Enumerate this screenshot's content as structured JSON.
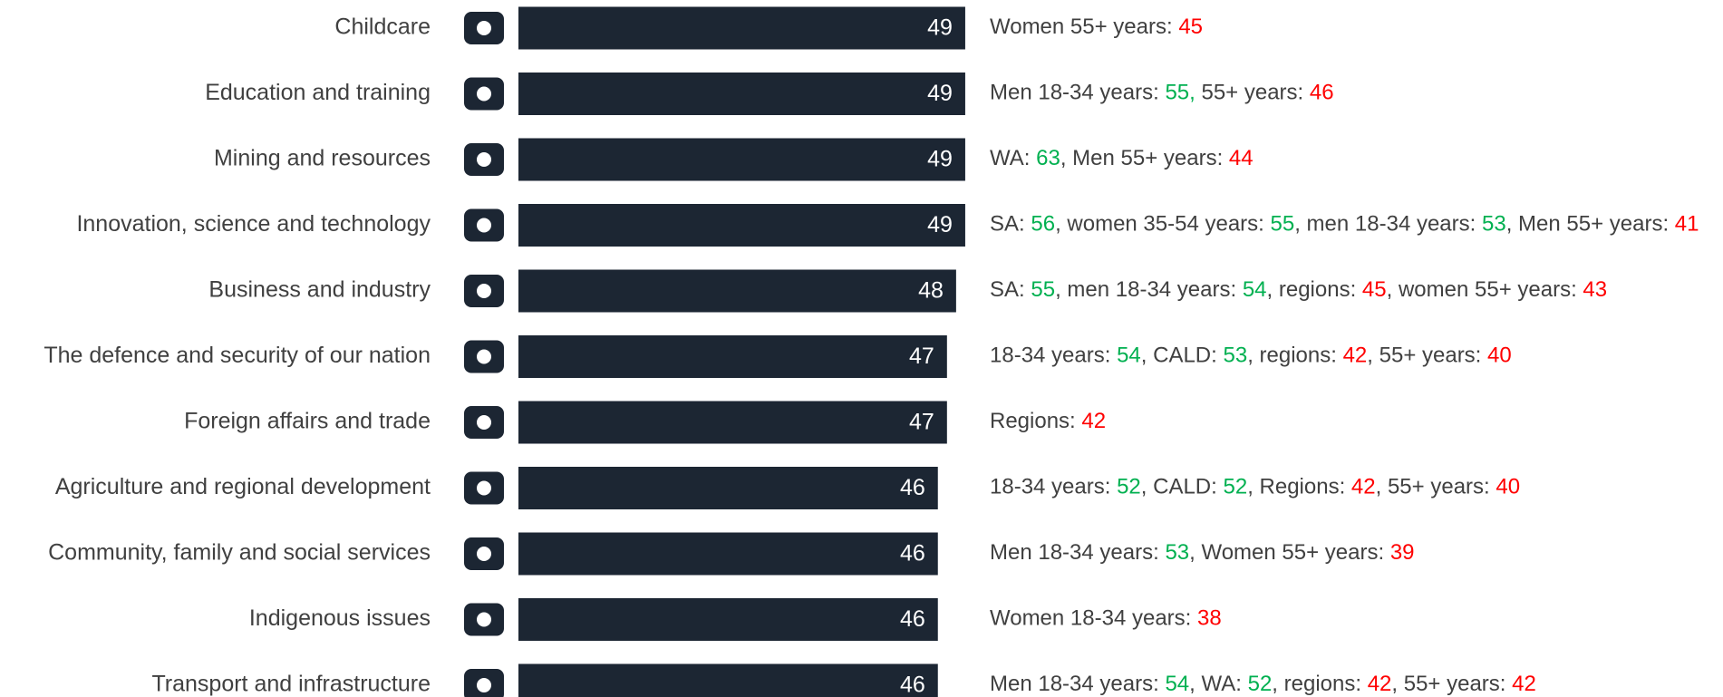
{
  "chart_data": {
    "type": "bar",
    "orientation": "horizontal",
    "categories": [
      "Childcare",
      "Education and training",
      "Mining and resources",
      "Innovation, science and technology",
      "Business and industry",
      "The defence and security of our nation",
      "Foreign affairs and trade",
      "Agriculture and regional development",
      "Community, family and social services",
      "Indigenous issues",
      "Transport and infrastructure"
    ],
    "values": [
      49,
      49,
      49,
      49,
      48,
      47,
      47,
      46,
      46,
      46,
      46
    ],
    "color": "#1c2633",
    "xlim": [
      0,
      50
    ],
    "annotations": [
      [
        {
          "text": "Women 55+ years: "
        },
        {
          "text": "45",
          "color": "#ff0000"
        }
      ],
      [
        {
          "text": "Men 18-34 years: "
        },
        {
          "text": "55,",
          "color": "#00b050"
        },
        {
          "text": " 55+ years: "
        },
        {
          "text": "46",
          "color": "#ff0000"
        }
      ],
      [
        {
          "text": "WA: "
        },
        {
          "text": "63",
          "color": "#00b050"
        },
        {
          "text": ", Men 55+ years: "
        },
        {
          "text": "44",
          "color": "#ff0000"
        }
      ],
      [
        {
          "text": "SA: "
        },
        {
          "text": "56",
          "color": "#00b050"
        },
        {
          "text": ", women 35-54 years: "
        },
        {
          "text": "55",
          "color": "#00b050"
        },
        {
          "text": ", men 18-34 years: "
        },
        {
          "text": "53",
          "color": "#00b050"
        },
        {
          "text": ", Men 55+ years: "
        },
        {
          "text": "41",
          "color": "#ff0000"
        }
      ],
      [
        {
          "text": "SA: "
        },
        {
          "text": "55",
          "color": "#00b050"
        },
        {
          "text": ", men 18-34 years: "
        },
        {
          "text": "54",
          "color": "#00b050"
        },
        {
          "text": ", regions: "
        },
        {
          "text": "45",
          "color": "#ff0000"
        },
        {
          "text": ", women 55+ years: "
        },
        {
          "text": "43",
          "color": "#ff0000"
        }
      ],
      [
        {
          "text": "18-34 years: "
        },
        {
          "text": "54",
          "color": "#00b050"
        },
        {
          "text": ", CALD: "
        },
        {
          "text": "53",
          "color": "#00b050"
        },
        {
          "text": ", regions: "
        },
        {
          "text": "42",
          "color": "#ff0000"
        },
        {
          "text": ", 55+ years: "
        },
        {
          "text": "40",
          "color": "#ff0000"
        }
      ],
      [
        {
          "text": "Regions: "
        },
        {
          "text": "42",
          "color": "#ff0000"
        }
      ],
      [
        {
          "text": "18-34 years: "
        },
        {
          "text": "52",
          "color": "#00b050"
        },
        {
          "text": ", CALD: "
        },
        {
          "text": "52",
          "color": "#00b050"
        },
        {
          "text": ", Regions: "
        },
        {
          "text": "42",
          "color": "#ff0000"
        },
        {
          "text": ", 55+ years: "
        },
        {
          "text": "40",
          "color": "#ff0000"
        }
      ],
      [
        {
          "text": "Men 18-34 years: "
        },
        {
          "text": "53",
          "color": "#00b050"
        },
        {
          "text": ", Women 55+ years: "
        },
        {
          "text": "39",
          "color": "#ff0000"
        }
      ],
      [
        {
          "text": "Women 18-34 years: "
        },
        {
          "text": "38",
          "color": "#ff0000"
        }
      ],
      [
        {
          "text": "Men 18-34 years: "
        },
        {
          "text": "54",
          "color": "#00b050"
        },
        {
          "text": ", WA: "
        },
        {
          "text": "52",
          "color": "#00b050"
        },
        {
          "text": ", regions: "
        },
        {
          "text": "42",
          "color": "#ff0000"
        },
        {
          "text": ", 55+ years: "
        },
        {
          "text": "42",
          "color": "#ff0000"
        }
      ]
    ]
  }
}
